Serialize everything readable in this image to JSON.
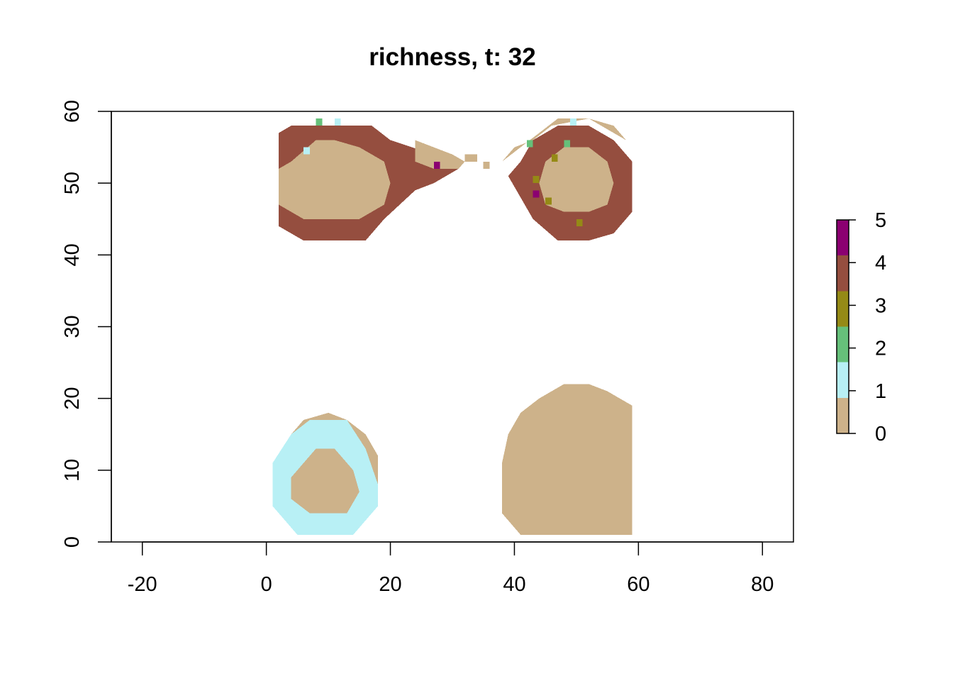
{
  "chart_data": {
    "type": "heatmap",
    "title": "richness, t: 32",
    "xlabel": "",
    "ylabel": "",
    "xlim": [
      -25,
      85
    ],
    "ylim": [
      0,
      60
    ],
    "x_ticks": [
      -20,
      0,
      20,
      40,
      60,
      80
    ],
    "y_ticks": [
      0,
      10,
      20,
      30,
      40,
      50,
      60
    ],
    "grid": false,
    "legend": {
      "placement": "right",
      "labels": [
        "0",
        "1",
        "2",
        "3",
        "4",
        "5"
      ],
      "colors": [
        "#CDB28A",
        "#B8F0F5",
        "#66C07A",
        "#958A16",
        "#954E3F",
        "#8B0071"
      ]
    },
    "cell_size": 1,
    "region_polygons": [
      {
        "name": "top-left ring",
        "value": 4,
        "points": [
          [
            2,
            44
          ],
          [
            2,
            57
          ],
          [
            4,
            58
          ],
          [
            17,
            58
          ],
          [
            20,
            56
          ],
          [
            27,
            54
          ],
          [
            31,
            52
          ],
          [
            27,
            50
          ],
          [
            24,
            49
          ],
          [
            19,
            45
          ],
          [
            16,
            42
          ],
          [
            6,
            42
          ]
        ]
      },
      {
        "name": "top-left tail",
        "value": 0,
        "points": [
          [
            24,
            56
          ],
          [
            30,
            54
          ],
          [
            32,
            53
          ],
          [
            31,
            52
          ],
          [
            27,
            52
          ],
          [
            24,
            53
          ]
        ]
      },
      {
        "name": "top-left core",
        "value": 0,
        "points": [
          [
            2,
            47
          ],
          [
            2,
            52
          ],
          [
            4,
            53
          ],
          [
            8,
            56
          ],
          [
            11,
            56
          ],
          [
            15,
            55
          ],
          [
            19,
            53
          ],
          [
            20,
            50
          ],
          [
            19,
            47
          ],
          [
            15,
            45
          ],
          [
            6,
            45
          ]
        ]
      },
      {
        "name": "top-right ring",
        "value": 4,
        "points": [
          [
            39,
            51
          ],
          [
            41,
            53
          ],
          [
            43,
            56
          ],
          [
            47,
            58
          ],
          [
            52,
            58
          ],
          [
            56,
            56
          ],
          [
            59,
            53
          ],
          [
            59,
            46
          ],
          [
            56,
            43
          ],
          [
            52,
            42
          ],
          [
            47,
            42
          ],
          [
            43,
            45
          ],
          [
            41,
            48
          ]
        ]
      },
      {
        "name": "top-right outer",
        "value": 0,
        "points": [
          [
            38,
            53
          ],
          [
            40,
            55
          ],
          [
            43,
            56
          ],
          [
            46,
            58
          ],
          [
            52,
            59
          ],
          [
            56,
            57
          ],
          [
            58,
            56
          ],
          [
            56,
            58
          ],
          [
            52,
            59
          ],
          [
            47,
            59
          ]
        ]
      },
      {
        "name": "top-right core",
        "value": 0,
        "points": [
          [
            44,
            50
          ],
          [
            45,
            53
          ],
          [
            48,
            55
          ],
          [
            52,
            55
          ],
          [
            55,
            53
          ],
          [
            56,
            50
          ],
          [
            55,
            47
          ],
          [
            52,
            46
          ],
          [
            48,
            46
          ],
          [
            45,
            47
          ]
        ]
      },
      {
        "name": "bottom-left outer",
        "value": 0,
        "points": [
          [
            1,
            9
          ],
          [
            2,
            12
          ],
          [
            4,
            15
          ],
          [
            6,
            17
          ],
          [
            10,
            18
          ],
          [
            13,
            17
          ],
          [
            16,
            15
          ],
          [
            18,
            12
          ],
          [
            18,
            6
          ],
          [
            15,
            3
          ],
          [
            11,
            1
          ],
          [
            6,
            1
          ],
          [
            3,
            3
          ]
        ]
      },
      {
        "name": "bottom-left ring",
        "value": 1,
        "points": [
          [
            1,
            5
          ],
          [
            1,
            11
          ],
          [
            4,
            15
          ],
          [
            7,
            17
          ],
          [
            13,
            17
          ],
          [
            16,
            13
          ],
          [
            18,
            8
          ],
          [
            18,
            5
          ],
          [
            16,
            3
          ],
          [
            14,
            1
          ],
          [
            5,
            1
          ],
          [
            3,
            3
          ]
        ]
      },
      {
        "name": "bottom-left core",
        "value": 0,
        "points": [
          [
            4,
            6
          ],
          [
            4,
            9
          ],
          [
            6,
            11
          ],
          [
            8,
            13
          ],
          [
            11,
            13
          ],
          [
            14,
            10
          ],
          [
            15,
            7
          ],
          [
            13,
            4
          ],
          [
            10,
            4
          ],
          [
            7,
            4
          ]
        ]
      },
      {
        "name": "bottom-right block",
        "value": 0,
        "points": [
          [
            38,
            4
          ],
          [
            38,
            11
          ],
          [
            39,
            15
          ],
          [
            41,
            18
          ],
          [
            44,
            20
          ],
          [
            48,
            22
          ],
          [
            52,
            22
          ],
          [
            55,
            21
          ],
          [
            57,
            20
          ],
          [
            59,
            19
          ],
          [
            59,
            1
          ],
          [
            41,
            1
          ],
          [
            39,
            3
          ]
        ]
      },
      {
        "name": "small tail cells",
        "value": 0,
        "points": [
          [
            32,
            54
          ],
          [
            33,
            54
          ],
          [
            33,
            53
          ],
          [
            32,
            53
          ]
        ]
      }
    ],
    "extra_cells": [
      {
        "x": 8,
        "y": 58,
        "value": 2
      },
      {
        "x": 11,
        "y": 58,
        "value": 1
      },
      {
        "x": 6,
        "y": 54,
        "value": 1
      },
      {
        "x": 27,
        "y": 52,
        "value": 5
      },
      {
        "x": 49,
        "y": 58,
        "value": 1
      },
      {
        "x": 42,
        "y": 55,
        "value": 2
      },
      {
        "x": 48,
        "y": 55,
        "value": 2
      },
      {
        "x": 46,
        "y": 53,
        "value": 3
      },
      {
        "x": 43,
        "y": 50,
        "value": 3
      },
      {
        "x": 43,
        "y": 48,
        "value": 5
      },
      {
        "x": 45,
        "y": 47,
        "value": 3
      },
      {
        "x": 50,
        "y": 44,
        "value": 3
      },
      {
        "x": 33,
        "y": 53,
        "value": 0
      },
      {
        "x": 35,
        "y": 52,
        "value": 0
      }
    ]
  }
}
